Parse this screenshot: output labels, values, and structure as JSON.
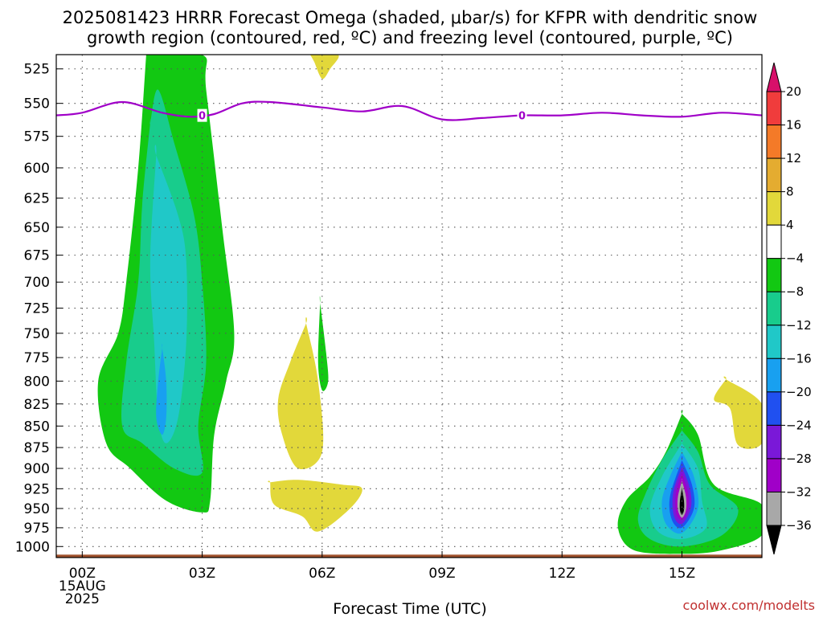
{
  "chart_data": {
    "type": "heatmap",
    "title_line1": "2025081423 HRRR Forecast Omega (shaded, μbar/s) for KFPR with dendritic snow",
    "title_line2": "growth region (contoured, red, ºC) and freezing level (contoured, purple, ºC)",
    "xlabel": "Forecast Time (UTC)",
    "ylabel": "",
    "x_ticks": [
      {
        "hour": 0,
        "label": "00Z",
        "sub1": "15AUG",
        "sub2": "2025"
      },
      {
        "hour": 3,
        "label": "03Z",
        "sub1": "",
        "sub2": ""
      },
      {
        "hour": 6,
        "label": "06Z",
        "sub1": "",
        "sub2": ""
      },
      {
        "hour": 9,
        "label": "09Z",
        "sub1": "",
        "sub2": ""
      },
      {
        "hour": 12,
        "label": "12Z",
        "sub1": "",
        "sub2": ""
      },
      {
        "hour": 15,
        "label": "15Z",
        "sub1": "",
        "sub2": ""
      }
    ],
    "xlim_hours": [
      -0.65,
      17.0
    ],
    "ylim_hpa": [
      1015,
      515
    ],
    "y_scale": "log",
    "y_ticks": [
      525,
      550,
      575,
      600,
      625,
      650,
      675,
      700,
      725,
      750,
      775,
      800,
      825,
      850,
      875,
      900,
      925,
      950,
      975,
      1000
    ],
    "grid": true,
    "colorbar": {
      "tick_labels": [
        "20",
        "16",
        "12",
        "8",
        "4",
        "−4",
        "−8",
        "−12",
        "−16",
        "−20",
        "−24",
        "−28",
        "−32",
        "−36"
      ],
      "colors": [
        "#d8106a",
        "#f03c3c",
        "#f47a28",
        "#e4ac30",
        "#e2d83a",
        "#ffffff",
        "#12c812",
        "#18cc8c",
        "#20c8c8",
        "#18a0f0",
        "#2050f0",
        "#7a18d8",
        "#a000c8",
        "#a8a8a8",
        "#000000"
      ]
    },
    "freezing_level": {
      "label": "0",
      "color": "#a000c8",
      "label_hours": [
        3,
        11
      ],
      "points": [
        {
          "hour": -0.65,
          "hpa": 559
        },
        {
          "hour": 0,
          "hpa": 557
        },
        {
          "hour": 1,
          "hpa": 549
        },
        {
          "hour": 2,
          "hpa": 557
        },
        {
          "hour": 2.7,
          "hpa": 560
        },
        {
          "hour": 3.3,
          "hpa": 558
        },
        {
          "hour": 4,
          "hpa": 550
        },
        {
          "hour": 4.7,
          "hpa": 549
        },
        {
          "hour": 6,
          "hpa": 553
        },
        {
          "hour": 7,
          "hpa": 556
        },
        {
          "hour": 8,
          "hpa": 552
        },
        {
          "hour": 9,
          "hpa": 562
        },
        {
          "hour": 10,
          "hpa": 561
        },
        {
          "hour": 11,
          "hpa": 559
        },
        {
          "hour": 12,
          "hpa": 559
        },
        {
          "hour": 13,
          "hpa": 557
        },
        {
          "hour": 14,
          "hpa": 559
        },
        {
          "hour": 15,
          "hpa": 560
        },
        {
          "hour": 16,
          "hpa": 557
        },
        {
          "hour": 17,
          "hpa": 559
        }
      ]
    },
    "shaded_regions": [
      {
        "value": -8,
        "color": "#12c812",
        "points": [
          [
            1.6,
            515
          ],
          [
            3,
            515
          ],
          [
            3.1,
            540
          ],
          [
            3.5,
            650
          ],
          [
            3.8,
            750
          ],
          [
            3.6,
            800
          ],
          [
            3.3,
            860
          ],
          [
            3.2,
            940
          ],
          [
            3.0,
            955
          ],
          [
            2.1,
            940
          ],
          [
            1.2,
            900
          ],
          [
            0.6,
            870
          ],
          [
            0.4,
            800
          ],
          [
            0.9,
            750
          ],
          [
            1.1,
            700
          ],
          [
            1.4,
            600
          ],
          [
            1.6,
            515
          ]
        ]
      },
      {
        "value": -12,
        "color": "#18cc8c",
        "points": [
          [
            1.7,
            565
          ],
          [
            1.9,
            540
          ],
          [
            2.3,
            580
          ],
          [
            2.8,
            640
          ],
          [
            3.0,
            700
          ],
          [
            3.1,
            780
          ],
          [
            2.9,
            850
          ],
          [
            3.0,
            905
          ],
          [
            2.3,
            900
          ],
          [
            1.5,
            870
          ],
          [
            1.0,
            850
          ],
          [
            1.1,
            780
          ],
          [
            1.4,
            700
          ],
          [
            1.5,
            630
          ],
          [
            1.7,
            565
          ]
        ]
      },
      {
        "value": -16,
        "color": "#20c8c8",
        "points": [
          [
            1.85,
            590
          ],
          [
            2.4,
            640
          ],
          [
            2.6,
            680
          ],
          [
            2.6,
            760
          ],
          [
            2.4,
            840
          ],
          [
            2.1,
            870
          ],
          [
            1.9,
            840
          ],
          [
            1.8,
            760
          ],
          [
            1.7,
            680
          ],
          [
            1.85,
            590
          ]
        ]
      },
      {
        "value": -20,
        "color": "#18a0f0",
        "points": [
          [
            2.0,
            765
          ],
          [
            2.1,
            800
          ],
          [
            2.1,
            840
          ],
          [
            2.0,
            860
          ],
          [
            1.85,
            840
          ],
          [
            1.9,
            800
          ],
          [
            2.0,
            765
          ]
        ]
      },
      {
        "value": 4,
        "color": "#e2d83a",
        "points": [
          [
            5.6,
            740
          ],
          [
            5.9,
            800
          ],
          [
            6.0,
            880
          ],
          [
            5.4,
            900
          ],
          [
            5.0,
            860
          ],
          [
            4.9,
            820
          ],
          [
            5.2,
            780
          ],
          [
            5.6,
            740
          ]
        ]
      },
      {
        "value": 4,
        "color": "#e2d83a",
        "points": [
          [
            4.7,
            917
          ],
          [
            5.4,
            914
          ],
          [
            6.5,
            920
          ],
          [
            7.0,
            925
          ],
          [
            6.7,
            950
          ],
          [
            5.9,
            980
          ],
          [
            5.5,
            960
          ],
          [
            4.8,
            945
          ],
          [
            4.7,
            917
          ]
        ]
      },
      {
        "value": 4,
        "color": "#e2d83a",
        "points": [
          [
            5.7,
            515
          ],
          [
            6.4,
            515
          ],
          [
            6.2,
            525
          ],
          [
            6.0,
            532
          ],
          [
            5.8,
            520
          ],
          [
            5.7,
            515
          ]
        ]
      },
      {
        "value": -8,
        "color": "#12c812",
        "points": [
          [
            5.95,
            720
          ],
          [
            6.1,
            770
          ],
          [
            6.15,
            800
          ],
          [
            6.0,
            810
          ],
          [
            5.9,
            780
          ],
          [
            5.95,
            720
          ]
        ]
      },
      {
        "value": 4,
        "color": "#e2d83a",
        "points": [
          [
            16.1,
            798
          ],
          [
            17,
            825
          ],
          [
            17,
            870
          ],
          [
            16.4,
            872
          ],
          [
            16.2,
            830
          ],
          [
            15.8,
            820
          ],
          [
            16.1,
            798
          ]
        ]
      },
      {
        "value": -8,
        "color": "#12c812",
        "points": [
          [
            15.0,
            836
          ],
          [
            15.4,
            860
          ],
          [
            15.8,
            920
          ],
          [
            17,
            945
          ],
          [
            17,
            985
          ],
          [
            16,
            1005
          ],
          [
            15,
            1010
          ],
          [
            13.8,
            1005
          ],
          [
            13.4,
            975
          ],
          [
            13.6,
            940
          ],
          [
            14.2,
            910
          ],
          [
            14.6,
            880
          ],
          [
            15.0,
            836
          ]
        ]
      },
      {
        "value": -12,
        "color": "#18cc8c",
        "points": [
          [
            15.0,
            855
          ],
          [
            15.4,
            880
          ],
          [
            15.7,
            920
          ],
          [
            16.4,
            950
          ],
          [
            16.0,
            985
          ],
          [
            15.0,
            1000
          ],
          [
            14.2,
            990
          ],
          [
            13.9,
            965
          ],
          [
            14.1,
            930
          ],
          [
            14.5,
            890
          ],
          [
            15.0,
            855
          ]
        ]
      },
      {
        "value": -16,
        "color": "#20c8c8",
        "points": [
          [
            15.0,
            870
          ],
          [
            15.4,
            900
          ],
          [
            15.5,
            940
          ],
          [
            15.6,
            975
          ],
          [
            15.0,
            990
          ],
          [
            14.4,
            980
          ],
          [
            14.2,
            950
          ],
          [
            14.5,
            910
          ],
          [
            15.0,
            870
          ]
        ]
      },
      {
        "value": -20,
        "color": "#18a0f0",
        "points": [
          [
            15.0,
            880
          ],
          [
            15.3,
            910
          ],
          [
            15.4,
            950
          ],
          [
            15.0,
            982
          ],
          [
            14.6,
            970
          ],
          [
            14.5,
            940
          ],
          [
            14.7,
            910
          ],
          [
            15.0,
            880
          ]
        ]
      },
      {
        "value": -24,
        "color": "#2050f0",
        "points": [
          [
            15.0,
            890
          ],
          [
            15.25,
            920
          ],
          [
            15.3,
            950
          ],
          [
            15.0,
            975
          ],
          [
            14.75,
            965
          ],
          [
            14.7,
            935
          ],
          [
            15.0,
            890
          ]
        ]
      },
      {
        "value": -28,
        "color": "#7a18d8",
        "points": [
          [
            15.0,
            898
          ],
          [
            15.2,
            925
          ],
          [
            15.22,
            950
          ],
          [
            15.0,
            970
          ],
          [
            14.8,
            960
          ],
          [
            14.78,
            930
          ],
          [
            15.0,
            898
          ]
        ]
      },
      {
        "value": -32,
        "color": "#a000c8",
        "points": [
          [
            15.0,
            905
          ],
          [
            15.15,
            930
          ],
          [
            15.15,
            950
          ],
          [
            15.0,
            965
          ],
          [
            14.85,
            955
          ],
          [
            14.85,
            930
          ],
          [
            15.0,
            905
          ]
        ]
      },
      {
        "value": -36,
        "color": "#a8a8a8",
        "points": [
          [
            15.0,
            915
          ],
          [
            15.1,
            935
          ],
          [
            15.1,
            952
          ],
          [
            15.0,
            962
          ],
          [
            14.9,
            952
          ],
          [
            14.9,
            935
          ],
          [
            15.0,
            915
          ]
        ]
      },
      {
        "value": -40,
        "color": "#000000",
        "points": [
          [
            15.0,
            925
          ],
          [
            15.05,
            940
          ],
          [
            15.05,
            952
          ],
          [
            15.0,
            958
          ],
          [
            14.95,
            952
          ],
          [
            14.95,
            940
          ],
          [
            15.0,
            925
          ]
        ]
      }
    ],
    "terrain": {
      "color": "#a0522d",
      "top_hpa": 1011
    }
  },
  "credit": "coolwx.com/modelts"
}
